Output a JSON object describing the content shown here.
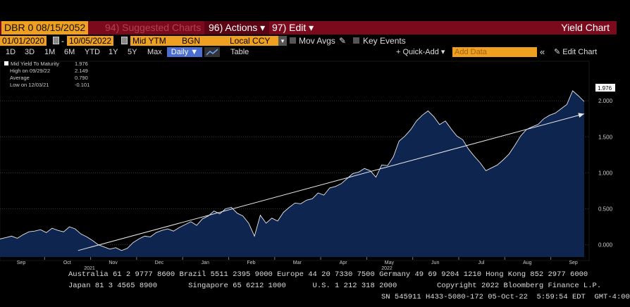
{
  "toolbar1": {
    "security": "DBR 0 08/15/2052",
    "suggested": "94) Suggested Charts",
    "actions": "96) Actions ▾",
    "edit": "97) Edit ▾",
    "title": "Yield Chart"
  },
  "toolbar2": {
    "start_date": "01/01/2020",
    "end_date": "10/05/2022",
    "field": "Mid YTM",
    "source": "BGN",
    "currency": "Local CCY",
    "mov_avgs": "Mov Avgs",
    "key_events": "Key Events"
  },
  "toolbar3": {
    "ranges": [
      "1D",
      "3D",
      "1M",
      "6M",
      "YTD",
      "1Y",
      "5Y",
      "Max"
    ],
    "daily": "Daily ▼",
    "table": "Table",
    "quick_add": "+ Quick-Add ▾",
    "add_data_placeholder": "Add Data",
    "edit_chart": "✎ Edit Chart"
  },
  "legend": {
    "title": "Mid Yield To Maturity",
    "last": "1.976",
    "high_label": "High on 09/29/22",
    "high": "2.149",
    "avg_label": "Average",
    "avg": "0.790",
    "low_label": "Low on 12/03/21",
    "low": "-0.101"
  },
  "chart_data": {
    "type": "area",
    "y_ticks": [
      "2.000",
      "1.500",
      "1.000",
      "0.500",
      "0.000"
    ],
    "ylim": [
      -0.17,
      2.55
    ],
    "x_month_labels": [
      "Sep",
      "Oct",
      "Nov",
      "Dec",
      "Jan",
      "Feb",
      "Mar",
      "Apr",
      "May",
      "Jun",
      "Jul",
      "Aug",
      "Sep"
    ],
    "year_labels": [
      "2021",
      "2022"
    ],
    "last_value_label": "1.976",
    "series": [
      {
        "values": [
          0.08,
          0.1,
          0.12,
          0.09,
          0.14,
          0.18,
          0.19,
          0.21,
          0.17,
          0.23,
          0.2,
          0.18,
          0.25,
          0.22,
          0.15,
          0.11,
          0.06,
          0.0,
          -0.03,
          -0.06,
          -0.04,
          -0.08,
          -0.05,
          0.03,
          0.08,
          0.12,
          0.11,
          0.17,
          0.2,
          0.22,
          0.19,
          0.24,
          0.28,
          0.32,
          0.27,
          0.36,
          0.4,
          0.47,
          0.43,
          0.5,
          0.52,
          0.44,
          0.4,
          0.3,
          0.12,
          0.41,
          0.3,
          0.37,
          0.33,
          0.45,
          0.52,
          0.58,
          0.57,
          0.62,
          0.64,
          0.72,
          0.69,
          0.79,
          0.81,
          0.85,
          0.92,
          0.99,
          1.01,
          1.06,
          1.03,
          0.94,
          1.11,
          1.1,
          1.22,
          1.44,
          1.51,
          1.6,
          1.72,
          1.8,
          1.86,
          1.78,
          1.67,
          1.72,
          1.61,
          1.51,
          1.46,
          1.33,
          1.23,
          1.14,
          1.03,
          1.07,
          1.11,
          1.18,
          1.26,
          1.38,
          1.51,
          1.6,
          1.64,
          1.67,
          1.75,
          1.8,
          1.83,
          1.89,
          1.95,
          2.14,
          2.07,
          1.99
        ]
      }
    ],
    "trendline": {
      "start": -0.08,
      "end": 1.82
    }
  },
  "footer": {
    "line1": "Australia 61 2 9777 8600 Brazil 5511 2395 9000 Europe 44 20 7330 7500 Germany 49 69 9204 1210 Hong Kong 852 2977 6000",
    "line2": "Japan 81 3 4565 8900       Singapore 65 6212 1000      U.S. 1 212 318 2000         Copyright 2022 Bloomberg Finance L.P.",
    "line3": "SN 545911 H433-5080-172 05-Oct-22  5:59:54 EDT  GMT-4:00"
  },
  "colors": {
    "accent": "#f0a020",
    "header_bar": "#7a0a1c",
    "area_fill": "#0e2550",
    "line": "#e8e8e8"
  }
}
